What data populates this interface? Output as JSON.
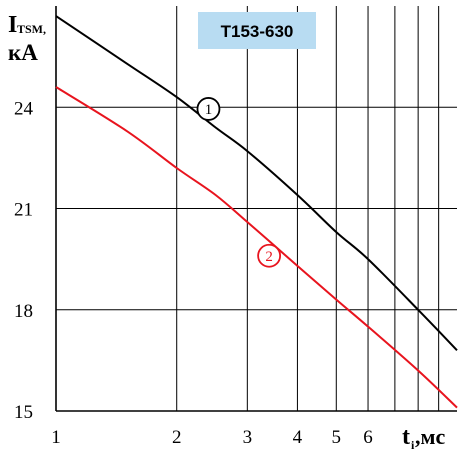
{
  "chart_data": {
    "type": "line",
    "title": "T153-630",
    "ylabel_main": "I",
    "ylabel_sub": "TSM,",
    "ylabel_unit": "кА",
    "xlabel_main": "t",
    "xlabel_sub": "i",
    "xlabel_unit": ",мс",
    "x_scale": "log",
    "xlim": [
      1,
      10
    ],
    "ylim": [
      15,
      27
    ],
    "x_ticks": [
      {
        "value": 1,
        "label": "1"
      },
      {
        "value": 2,
        "label": "2"
      },
      {
        "value": 3,
        "label": "3"
      },
      {
        "value": 4,
        "label": "4"
      },
      {
        "value": 5,
        "label": "5"
      },
      {
        "value": 6,
        "label": "6"
      }
    ],
    "y_ticks": [
      {
        "value": 15,
        "label": "15"
      },
      {
        "value": 18,
        "label": "18"
      },
      {
        "value": 21,
        "label": "21"
      },
      {
        "value": 24,
        "label": "24"
      }
    ],
    "grid": true,
    "series": [
      {
        "name": "1",
        "color": "#000000",
        "x": [
          1,
          1.5,
          2,
          2.5,
          3,
          4,
          5,
          6,
          8,
          10
        ],
        "y": [
          26.7,
          25.3,
          24.3,
          23.4,
          22.7,
          21.4,
          20.3,
          19.5,
          18.0,
          16.8
        ]
      },
      {
        "name": "2",
        "color": "#e8141e",
        "x": [
          1,
          1.5,
          2,
          2.5,
          3,
          4,
          5,
          6,
          8,
          10
        ],
        "y": [
          24.6,
          23.3,
          22.2,
          21.4,
          20.6,
          19.3,
          18.3,
          17.5,
          16.2,
          15.1
        ]
      }
    ],
    "markers": [
      {
        "label": "1",
        "x": 2.4,
        "y": 23.95,
        "color": "#000000"
      },
      {
        "label": "2",
        "x": 3.4,
        "y": 19.6,
        "color": "#e8141e"
      }
    ],
    "title_bg": "#b8dcf2"
  }
}
